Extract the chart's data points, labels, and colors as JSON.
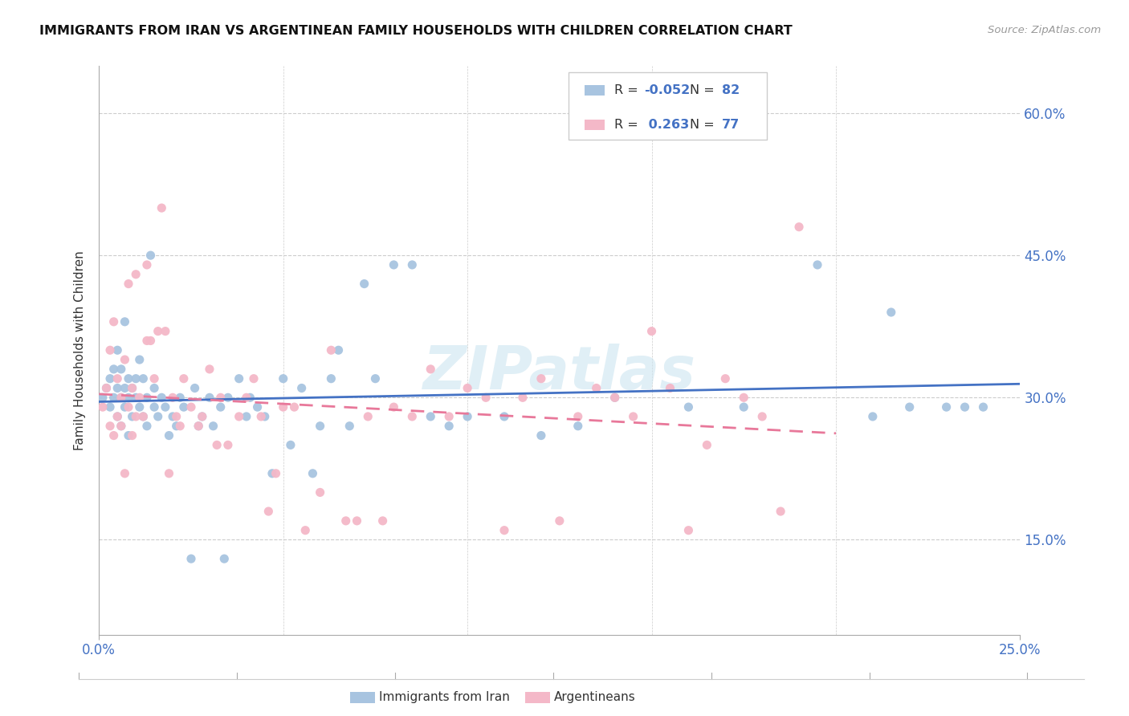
{
  "title": "IMMIGRANTS FROM IRAN VS ARGENTINEAN FAMILY HOUSEHOLDS WITH CHILDREN CORRELATION CHART",
  "source": "Source: ZipAtlas.com",
  "ylabel": "Family Households with Children",
  "yticks": [
    "15.0%",
    "30.0%",
    "45.0%",
    "60.0%"
  ],
  "ytick_vals": [
    0.15,
    0.3,
    0.45,
    0.6
  ],
  "legend_iran": "Immigrants from Iran",
  "legend_arg": "Argentineans",
  "R_iran": -0.052,
  "N_iran": 82,
  "R_arg": 0.263,
  "N_arg": 77,
  "color_iran": "#a8c4e0",
  "color_arg": "#f4b8c8",
  "line_color_iran": "#4472c4",
  "line_color_arg": "#e8789a",
  "watermark": "ZIPatlas",
  "iran_x": [
    0.001,
    0.002,
    0.003,
    0.003,
    0.004,
    0.004,
    0.005,
    0.005,
    0.005,
    0.006,
    0.006,
    0.006,
    0.007,
    0.007,
    0.007,
    0.008,
    0.008,
    0.008,
    0.009,
    0.009,
    0.01,
    0.01,
    0.011,
    0.011,
    0.012,
    0.012,
    0.013,
    0.013,
    0.014,
    0.015,
    0.015,
    0.016,
    0.017,
    0.018,
    0.019,
    0.02,
    0.021,
    0.022,
    0.023,
    0.025,
    0.026,
    0.027,
    0.028,
    0.03,
    0.031,
    0.033,
    0.034,
    0.035,
    0.038,
    0.04,
    0.041,
    0.043,
    0.045,
    0.047,
    0.05,
    0.052,
    0.055,
    0.058,
    0.06,
    0.063,
    0.065,
    0.068,
    0.072,
    0.075,
    0.08,
    0.085,
    0.09,
    0.095,
    0.1,
    0.11,
    0.12,
    0.13,
    0.14,
    0.16,
    0.175,
    0.195,
    0.21,
    0.215,
    0.22,
    0.23,
    0.235,
    0.24
  ],
  "iran_y": [
    0.3,
    0.31,
    0.29,
    0.32,
    0.33,
    0.3,
    0.28,
    0.31,
    0.35,
    0.27,
    0.3,
    0.33,
    0.29,
    0.31,
    0.38,
    0.26,
    0.3,
    0.32,
    0.28,
    0.31,
    0.3,
    0.32,
    0.29,
    0.34,
    0.28,
    0.32,
    0.27,
    0.3,
    0.45,
    0.29,
    0.31,
    0.28,
    0.3,
    0.29,
    0.26,
    0.28,
    0.27,
    0.3,
    0.29,
    0.13,
    0.31,
    0.27,
    0.28,
    0.3,
    0.27,
    0.29,
    0.13,
    0.3,
    0.32,
    0.28,
    0.3,
    0.29,
    0.28,
    0.22,
    0.32,
    0.25,
    0.31,
    0.22,
    0.27,
    0.32,
    0.35,
    0.27,
    0.42,
    0.32,
    0.44,
    0.44,
    0.28,
    0.27,
    0.28,
    0.28,
    0.26,
    0.27,
    0.3,
    0.29,
    0.29,
    0.44,
    0.28,
    0.39,
    0.29,
    0.29,
    0.29,
    0.29
  ],
  "arg_x": [
    0.001,
    0.002,
    0.003,
    0.003,
    0.004,
    0.004,
    0.005,
    0.005,
    0.006,
    0.006,
    0.007,
    0.007,
    0.008,
    0.008,
    0.009,
    0.009,
    0.01,
    0.01,
    0.011,
    0.012,
    0.013,
    0.013,
    0.014,
    0.015,
    0.016,
    0.017,
    0.018,
    0.019,
    0.02,
    0.021,
    0.022,
    0.023,
    0.025,
    0.027,
    0.028,
    0.03,
    0.032,
    0.033,
    0.035,
    0.038,
    0.04,
    0.042,
    0.044,
    0.046,
    0.048,
    0.05,
    0.053,
    0.056,
    0.06,
    0.063,
    0.067,
    0.07,
    0.073,
    0.077,
    0.08,
    0.085,
    0.09,
    0.095,
    0.1,
    0.105,
    0.11,
    0.115,
    0.12,
    0.125,
    0.13,
    0.135,
    0.14,
    0.145,
    0.15,
    0.155,
    0.16,
    0.165,
    0.17,
    0.175,
    0.18,
    0.185,
    0.19
  ],
  "arg_y": [
    0.29,
    0.31,
    0.27,
    0.35,
    0.26,
    0.38,
    0.28,
    0.32,
    0.27,
    0.3,
    0.22,
    0.34,
    0.29,
    0.42,
    0.26,
    0.31,
    0.28,
    0.43,
    0.3,
    0.28,
    0.44,
    0.36,
    0.36,
    0.32,
    0.37,
    0.5,
    0.37,
    0.22,
    0.3,
    0.28,
    0.27,
    0.32,
    0.29,
    0.27,
    0.28,
    0.33,
    0.25,
    0.3,
    0.25,
    0.28,
    0.3,
    0.32,
    0.28,
    0.18,
    0.22,
    0.29,
    0.29,
    0.16,
    0.2,
    0.35,
    0.17,
    0.17,
    0.28,
    0.17,
    0.29,
    0.28,
    0.33,
    0.28,
    0.31,
    0.3,
    0.16,
    0.3,
    0.32,
    0.17,
    0.28,
    0.31,
    0.3,
    0.28,
    0.37,
    0.31,
    0.16,
    0.25,
    0.32,
    0.3,
    0.28,
    0.18,
    0.48
  ]
}
